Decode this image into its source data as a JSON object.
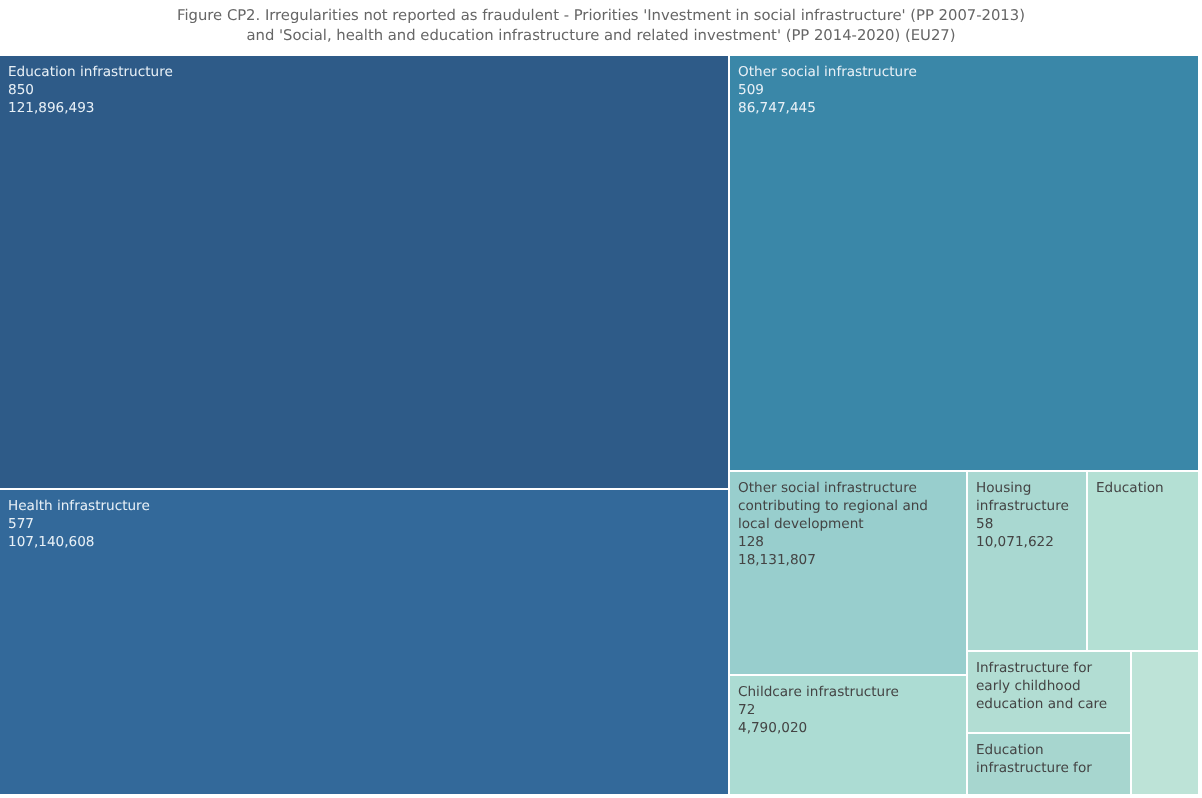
{
  "chart_data": {
    "type": "other",
    "title": "Figure CP2. Irregularities not reported as fraudulent - Priorities 'Investment in social infrastructure' (PP 2007-2013)\nand 'Social, health and education infrastructure and related investment' (PP 2014-2020) (EU27)",
    "categories": [
      "Education infrastructure",
      "Health infrastructure",
      "Other social infrastructure",
      "Other social infrastructure contributing to regional and local development",
      "Childcare infrastructure",
      "Housing infrastructure",
      "Education",
      "Infrastructure for early childhood education and care",
      "Education infrastructure for",
      null
    ],
    "series": [
      {
        "values": [
          850,
          577,
          509,
          128,
          72,
          58,
          null,
          null,
          null,
          null
        ],
        "colors": [
          "#2e5b88",
          "#33699a",
          "#3a87a8",
          "#98cecd",
          "#acdcd3",
          "#a9d8d1",
          "#b4e0d4",
          "#b2ddd3",
          "#a7d6cf",
          "#bde3d7"
        ]
      },
      {
        "values": [
          121896493,
          107140608,
          86747445,
          18131807,
          4790020,
          10071622,
          null,
          null,
          null,
          null
        ],
        "value_labels": [
          "121,896,493",
          "107,140,608",
          "86,747,445",
          "18,131,807",
          "4,790,020",
          "10,071,622",
          null,
          null,
          null,
          null
        ]
      }
    ],
    "data_labels": true
  }
}
